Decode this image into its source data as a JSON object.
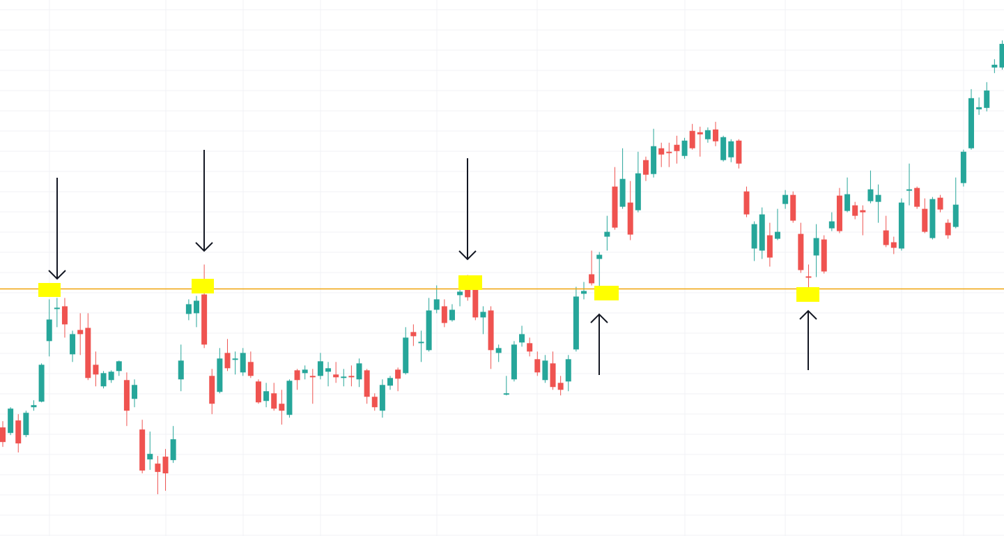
{
  "chart_data": {
    "type": "candlestick",
    "up_color": "#26a69a",
    "down_color": "#ef5350",
    "ylim": [
      0,
      770
    ],
    "open": [
      156,
      148,
      166,
      145,
      185,
      193,
      280,
      326,
      330,
      261,
      296,
      299,
      246,
      215,
      224,
      237,
      224,
      197,
      153,
      110,
      104,
      114,
      109,
      225,
      319,
      320,
      347,
      230,
      207,
      263,
      253,
      235,
      250,
      222,
      194,
      205,
      190,
      174,
      238,
      234,
      230,
      230,
      236,
      232,
      227,
      230,
      225,
      238,
      200,
      180,
      216,
      239,
      234,
      293,
      277,
      267,
      325,
      330,
      310,
      346,
      367,
      357,
      314,
      324,
      263,
      203,
      225,
      278,
      277,
      254,
      224,
      248,
      220,
      222,
      268,
      348,
      376,
      398,
      430,
      502,
      473,
      479,
      468,
      540,
      520,
      557,
      552,
      562,
      546,
      582,
      580,
      570,
      584,
      540,
      544,
      568,
      495,
      413,
      410,
      432,
      427,
      477,
      490,
      434,
      373,
      403,
      426,
      442,
      489,
      467,
      475,
      468,
      481,
      480,
      439,
      422,
      413,
      496,
      500,
      470,
      428,
      486,
      450,
      444,
      507,
      557,
      613,
      615,
      673,
      673
    ],
    "high": [
      165,
      185,
      175,
      180,
      195,
      248,
      340,
      342,
      342,
      295,
      320,
      320,
      265,
      237,
      238,
      252,
      235,
      225,
      167,
      150,
      115,
      125,
      158,
      275,
      340,
      345,
      390,
      240,
      270,
      283,
      265,
      270,
      265,
      225,
      220,
      220,
      210,
      225,
      240,
      245,
      240,
      263,
      250,
      250,
      240,
      245,
      255,
      240,
      205,
      225,
      230,
      242,
      300,
      304,
      295,
      342,
      360,
      340,
      333,
      358,
      375,
      368,
      330,
      330,
      275,
      230,
      280,
      302,
      285,
      265,
      260,
      265,
      230,
      260,
      358,
      365,
      410,
      408,
      460,
      530,
      557,
      510,
      552,
      545,
      585,
      565,
      565,
      575,
      572,
      592,
      588,
      587,
      595,
      575,
      570,
      570,
      502,
      452,
      472,
      450,
      470,
      497,
      495,
      450,
      390,
      448,
      432,
      465,
      500,
      515,
      480,
      475,
      525,
      505,
      460,
      430,
      485,
      535,
      502,
      485,
      487,
      490,
      455,
      515,
      555,
      642,
      630,
      652,
      685,
      712
    ],
    "low": [
      128,
      145,
      120,
      142,
      180,
      192,
      258,
      300,
      285,
      250,
      260,
      224,
      215,
      212,
      220,
      230,
      158,
      185,
      90,
      95,
      60,
      65,
      105,
      208,
      310,
      300,
      270,
      175,
      205,
      237,
      232,
      230,
      227,
      190,
      185,
      180,
      160,
      170,
      210,
      225,
      190,
      225,
      215,
      220,
      215,
      215,
      214,
      190,
      180,
      170,
      210,
      208,
      232,
      273,
      250,
      265,
      320,
      300,
      308,
      330,
      338,
      310,
      290,
      240,
      250,
      202,
      222,
      272,
      258,
      230,
      220,
      210,
      202,
      208,
      265,
      340,
      360,
      340,
      410,
      440,
      470,
      425,
      465,
      510,
      515,
      530,
      530,
      535,
      542,
      555,
      545,
      565,
      560,
      538,
      537,
      528,
      458,
      395,
      398,
      387,
      425,
      470,
      450,
      378,
      350,
      372,
      377,
      438,
      435,
      465,
      455,
      432,
      478,
      450,
      415,
      405,
      410,
      475,
      470,
      435,
      426,
      465,
      427,
      442,
      502,
      555,
      605,
      610,
      665,
      670
    ],
    "close": [
      135,
      183,
      133,
      177,
      188,
      246,
      311,
      328,
      304,
      290,
      290,
      227,
      232,
      234,
      236,
      251,
      180,
      217,
      94,
      118,
      92,
      90,
      139,
      252,
      333,
      338,
      275,
      190,
      255,
      241,
      255,
      263,
      230,
      192,
      208,
      183,
      180,
      223,
      224,
      239,
      228,
      251,
      241,
      228,
      229,
      228,
      248,
      200,
      185,
      217,
      227,
      226,
      285,
      287,
      279,
      324,
      340,
      306,
      325,
      351,
      343,
      314,
      322,
      267,
      270,
      205,
      275,
      290,
      265,
      235,
      252,
      214,
      210,
      254,
      344,
      352,
      363,
      404,
      437,
      443,
      513,
      433,
      521,
      519,
      560,
      548,
      550,
      553,
      568,
      557,
      577,
      583,
      567,
      573,
      567,
      535,
      462,
      448,
      462,
      400,
      437,
      490,
      453,
      382,
      371,
      428,
      380,
      452,
      438,
      491,
      460,
      465,
      498,
      490,
      418,
      414,
      479,
      498,
      473,
      437,
      484,
      469,
      432,
      476,
      552,
      629,
      616,
      640,
      677,
      707
    ],
    "hline": 355,
    "hline_color": "#f0a30a"
  }
}
